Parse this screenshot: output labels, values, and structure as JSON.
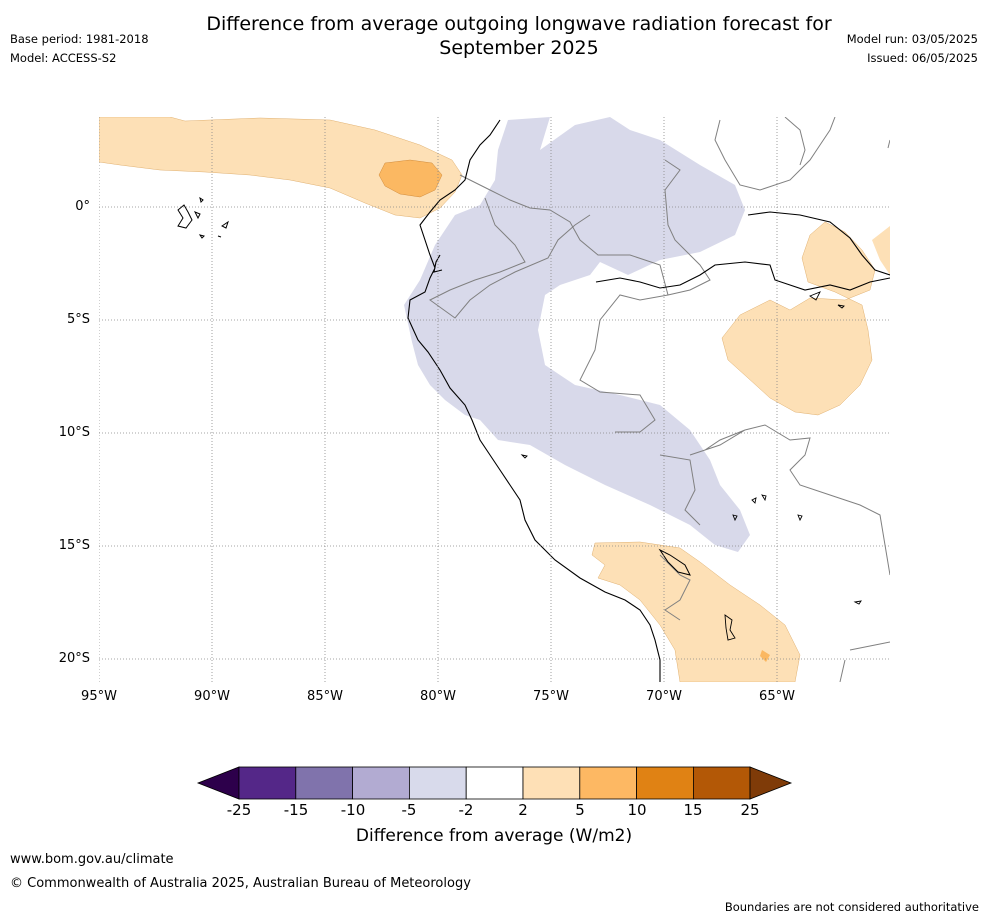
{
  "header": {
    "title_line1": "Difference from average outgoing longwave radiation forecast for",
    "title_line2": "September 2025",
    "base_period": "Base period: 1981-2018",
    "model": "Model: ACCESS-S2",
    "model_run": "Model run: 03/05/2025",
    "issued": "Issued: 06/05/2025"
  },
  "map": {
    "lat_labels": [
      "0°",
      "5°S",
      "10°S",
      "15°S",
      "20°S"
    ],
    "lon_labels": [
      "95°W",
      "90°W",
      "85°W",
      "80°W",
      "75°W",
      "70°W",
      "65°W"
    ],
    "colors": {
      "light_orange": "#fde0b6",
      "mid_orange": "#fbb862",
      "light_purple": "#d8d9ea",
      "coast": "#000000",
      "border": "#808080",
      "grid": "#888888"
    }
  },
  "colorbar": {
    "title": "Difference from average (W/m2)",
    "labels": [
      "-25",
      "-15",
      "-10",
      "-5",
      "-2",
      "2",
      "5",
      "10",
      "15",
      "25"
    ],
    "colors": [
      "#2d004b",
      "#542788",
      "#8073ac",
      "#b2abd2",
      "#d8daeb",
      "#ffffff",
      "#fee0b6",
      "#fdb863",
      "#e08214",
      "#b35806",
      "#7f3b08"
    ]
  },
  "footer": {
    "website": "www.bom.gov.au/climate",
    "copyright": "© Commonwealth of Australia 2025, Australian Bureau of Meteorology",
    "disclaimer": "Boundaries are not considered authoritative"
  }
}
